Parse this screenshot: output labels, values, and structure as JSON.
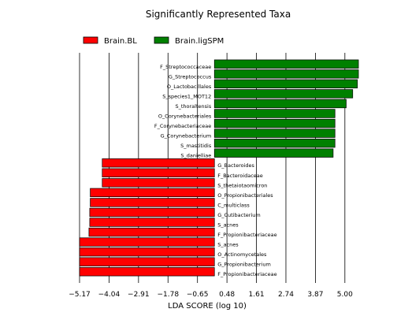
{
  "chart_data": {
    "type": "bar",
    "orientation": "horizontal",
    "title": "Significantly Represented Taxa",
    "xlabel": "LDA SCORE (log 10)",
    "ylabel": "",
    "xlim": [
      -5.17,
      5.76
    ],
    "xticks": [
      -5.17,
      -4.04,
      -2.91,
      -1.78,
      -0.65,
      0.48,
      1.61,
      2.74,
      3.87,
      5.0
    ],
    "xtick_labels": [
      "−5.17",
      "−4.04",
      "−2.91",
      "−1.78",
      "−0.65",
      "0.48",
      "1.61",
      "2.74",
      "3.87",
      "5.00"
    ],
    "grid": "vertical lines at x ticks",
    "legend_position": "top-left",
    "series": [
      {
        "name": "Brain.BL",
        "color": "#ff0000"
      },
      {
        "name": "Brain.ligSPM",
        "color": "#008000"
      }
    ],
    "bars": [
      {
        "label": "F_Streptococcaceae",
        "value": 5.52,
        "group": "Brain.ligSPM"
      },
      {
        "label": "G_Streptococcus",
        "value": 5.52,
        "group": "Brain.ligSPM"
      },
      {
        "label": "O_Lactobacillales",
        "value": 5.48,
        "group": "Brain.ligSPM"
      },
      {
        "label": "S_species1_MOT12",
        "value": 5.3,
        "group": "Brain.ligSPM"
      },
      {
        "label": "S_thoraltensis",
        "value": 5.05,
        "group": "Brain.ligSPM"
      },
      {
        "label": "O_Corynebacteriales",
        "value": 4.62,
        "group": "Brain.ligSPM"
      },
      {
        "label": "F_Corynebacteriaceae",
        "value": 4.62,
        "group": "Brain.ligSPM"
      },
      {
        "label": "G_Corynebacterium",
        "value": 4.62,
        "group": "Brain.ligSPM"
      },
      {
        "label": "S_mastitidis",
        "value": 4.62,
        "group": "Brain.ligSPM"
      },
      {
        "label": "S_danielliae",
        "value": 4.55,
        "group": "Brain.ligSPM"
      },
      {
        "label": "G_Bacteroides",
        "value": -4.3,
        "group": "Brain.BL"
      },
      {
        "label": "F_Bacteroidaceae",
        "value": -4.3,
        "group": "Brain.BL"
      },
      {
        "label": "S_thetaiotaomicron",
        "value": -4.3,
        "group": "Brain.BL"
      },
      {
        "label": "O_Propionibacteriales",
        "value": -4.76,
        "group": "Brain.BL"
      },
      {
        "label": "C_multiclass",
        "value": -4.76,
        "group": "Brain.BL"
      },
      {
        "label": "G_Cutibacterium",
        "value": -4.78,
        "group": "Brain.BL"
      },
      {
        "label": "S_acnes",
        "value": -4.78,
        "group": "Brain.BL"
      },
      {
        "label": "F_Propionibacteriaceae",
        "value": -4.81,
        "group": "Brain.BL"
      },
      {
        "label": "S_acnes",
        "value": -5.17,
        "group": "Brain.BL"
      },
      {
        "label": "O_Actinomycetales",
        "value": -5.17,
        "group": "Brain.BL"
      },
      {
        "label": "G_Propionibacterium",
        "value": -5.17,
        "group": "Brain.BL"
      },
      {
        "label": "F_Propionibacteriaceae",
        "value": -5.17,
        "group": "Brain.BL"
      }
    ]
  }
}
